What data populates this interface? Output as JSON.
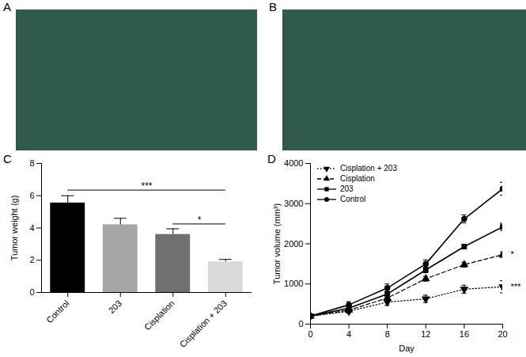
{
  "panel_labels": [
    "A",
    "B",
    "C",
    "D"
  ],
  "chart_data": [
    {
      "type": "bar",
      "ylabel": "Tumor weight (g)",
      "categories": [
        "Control",
        "203",
        "Cisplation",
        "Cisplation + 203"
      ],
      "values": [
        5.55,
        4.2,
        3.6,
        1.9
      ],
      "errors": [
        0.45,
        0.4,
        0.35,
        0.15
      ],
      "colors": [
        "#000000",
        "#a6a6a6",
        "#707070",
        "#d9d9d9"
      ],
      "ylim": [
        0,
        8
      ],
      "yticks": [
        0,
        2,
        4,
        6,
        8
      ],
      "grid": false,
      "annotations": [
        {
          "text": "***",
          "from": "Control",
          "to": "Cisplation + 203",
          "y": 6.35
        },
        {
          "text": "*",
          "from": "Cisplation",
          "to": "Cisplation + 203",
          "y": 4.25
        }
      ]
    },
    {
      "type": "line",
      "xlabel": "Day",
      "ylabel": "Tumor volume (mm³)",
      "x": [
        0,
        4,
        8,
        12,
        16,
        20
      ],
      "series": [
        {
          "name": "Cisplation + 203",
          "color": "#000000",
          "marker": "triangle-down",
          "line_style": "dotted",
          "values": [
            200,
            320,
            550,
            630,
            870,
            930
          ],
          "errors": [
            20,
            50,
            80,
            90,
            100,
            150
          ]
        },
        {
          "name": "Cisplation",
          "color": "#000000",
          "marker": "triangle",
          "line_style": "dashed",
          "values": [
            200,
            350,
            650,
            1130,
            1480,
            1730
          ],
          "errors": [
            20,
            50,
            70,
            60,
            60,
            70
          ]
        },
        {
          "name": "203",
          "color": "#000000",
          "marker": "square",
          "line_style": "solid",
          "values": [
            200,
            400,
            750,
            1350,
            1930,
            2420
          ],
          "errors": [
            20,
            50,
            70,
            70,
            60,
            90
          ]
        },
        {
          "name": "Control",
          "color": "#000000",
          "marker": "circle",
          "line_style": "solid",
          "values": [
            200,
            480,
            900,
            1500,
            2620,
            3370
          ],
          "errors": [
            20,
            80,
            100,
            100,
            100,
            160
          ]
        }
      ],
      "xlim": [
        0,
        20
      ],
      "xticks": [
        0,
        4,
        8,
        12,
        16,
        20
      ],
      "ylim": [
        0,
        4000
      ],
      "yticks": [
        0,
        1000,
        2000,
        3000,
        4000
      ],
      "grid": false,
      "legend": "upper left",
      "annotations": [
        {
          "text": "*",
          "series": "Cisplation"
        },
        {
          "text": "***",
          "series": "Cisplation + 203"
        }
      ]
    }
  ]
}
